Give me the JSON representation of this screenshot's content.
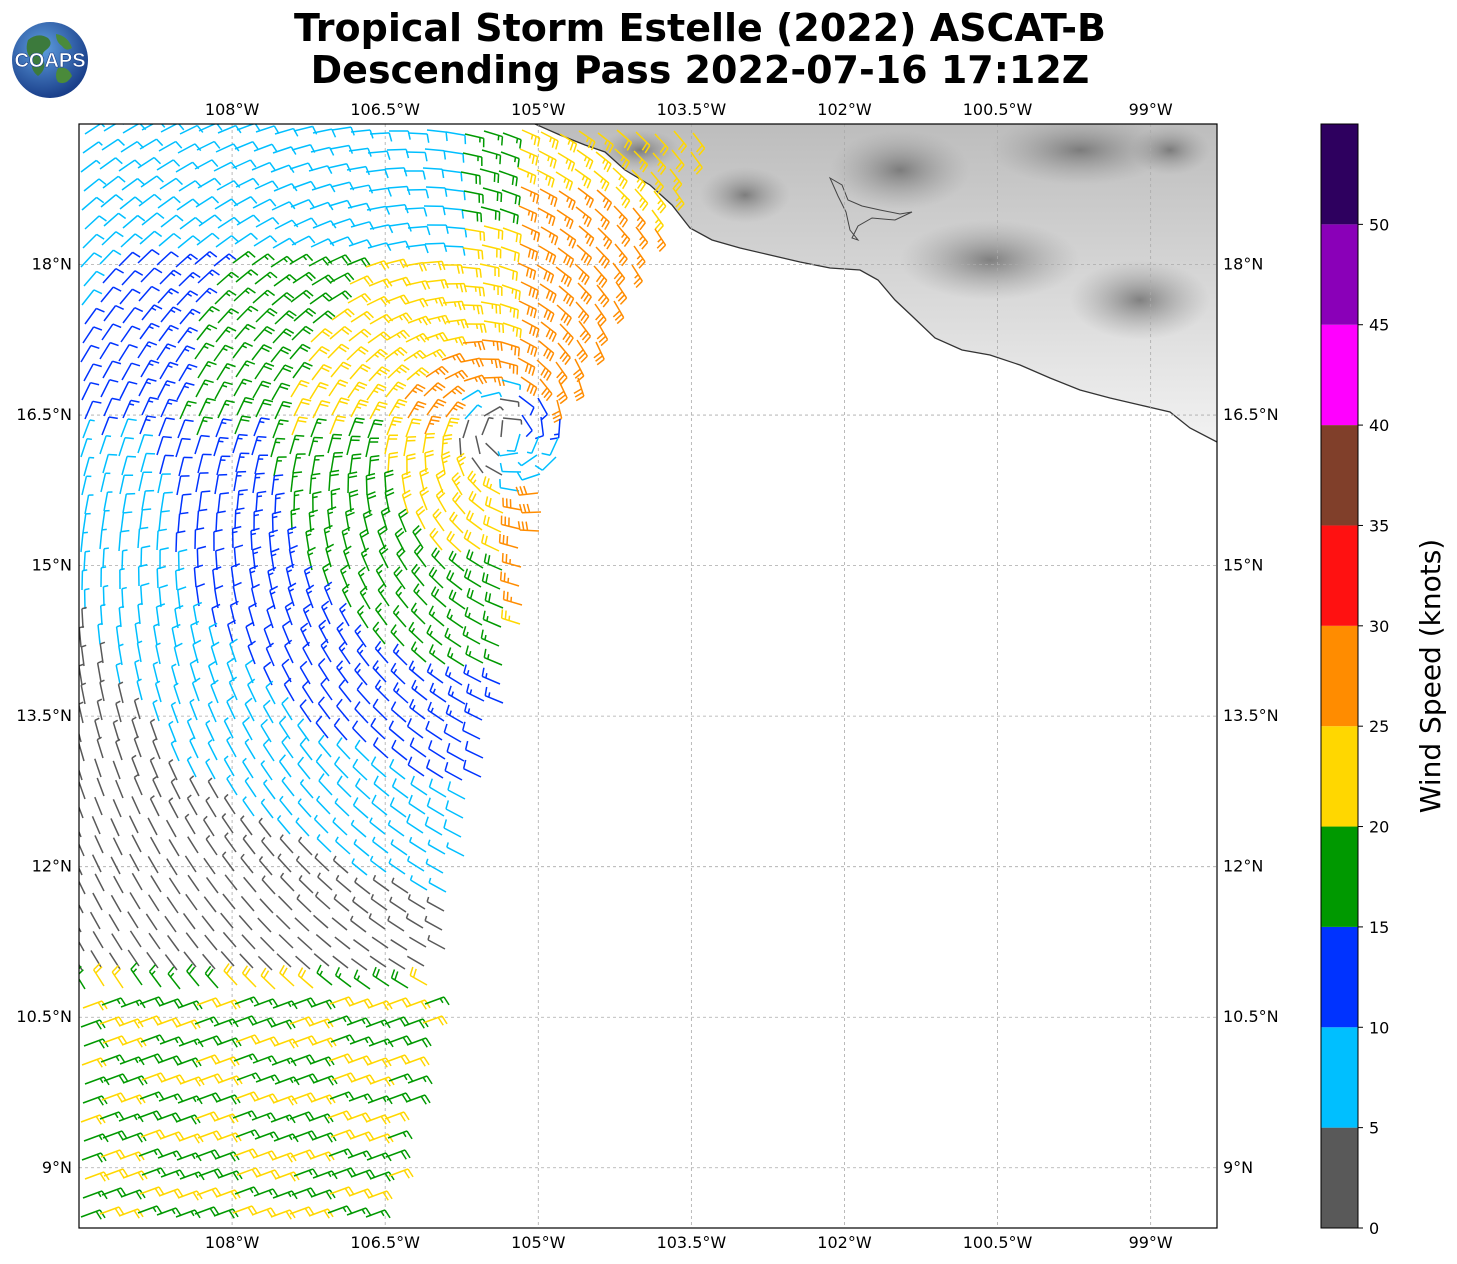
{
  "title": {
    "line1": "Tropical Storm Estelle (2022) ASCAT-B",
    "line2": "Descending Pass 2022-07-16 17:12Z"
  },
  "logo": {
    "text": "COAPS",
    "icon": "globe-logo-icon"
  },
  "map": {
    "lon_range": [
      -109.5,
      -98.35
    ],
    "lat_range": [
      8.4,
      19.4
    ],
    "lon_ticks": [
      "108°W",
      "106.5°W",
      "105°W",
      "103.5°W",
      "102°W",
      "100.5°W",
      "99°W"
    ],
    "lat_ticks": [
      "18°N",
      "16.5°N",
      "15°N",
      "13.5°N",
      "12°N",
      "10.5°N",
      "9°N"
    ],
    "grid": true,
    "land_shading": "grayscale terrain",
    "coastline_color": "#333333"
  },
  "colorbar": {
    "label": "Wind Speed (knots)",
    "ticks": [
      "0",
      "5",
      "10",
      "15",
      "20",
      "25",
      "30",
      "35",
      "40",
      "45",
      "50"
    ],
    "bins": [
      {
        "from": 0,
        "to": 5,
        "color": "#595959"
      },
      {
        "from": 5,
        "to": 10,
        "color": "#00bfff"
      },
      {
        "from": 10,
        "to": 15,
        "color": "#0033ff"
      },
      {
        "from": 15,
        "to": 20,
        "color": "#009900"
      },
      {
        "from": 20,
        "to": 25,
        "color": "#ffd700"
      },
      {
        "from": 25,
        "to": 30,
        "color": "#ff8c00"
      },
      {
        "from": 30,
        "to": 35,
        "color": "#ff1111"
      },
      {
        "from": 35,
        "to": 40,
        "color": "#803f2a"
      },
      {
        "from": 40,
        "to": 45,
        "color": "#ff00ff"
      },
      {
        "from": 45,
        "to": 50,
        "color": "#8a00b8"
      },
      {
        "from": 50,
        "to": 55,
        "color": "#2e005f"
      }
    ]
  },
  "wind_field": {
    "center_lat": 16.3,
    "center_lon": -105.3,
    "swath_note": "ASCAT swath on the western side of the map"
  }
}
